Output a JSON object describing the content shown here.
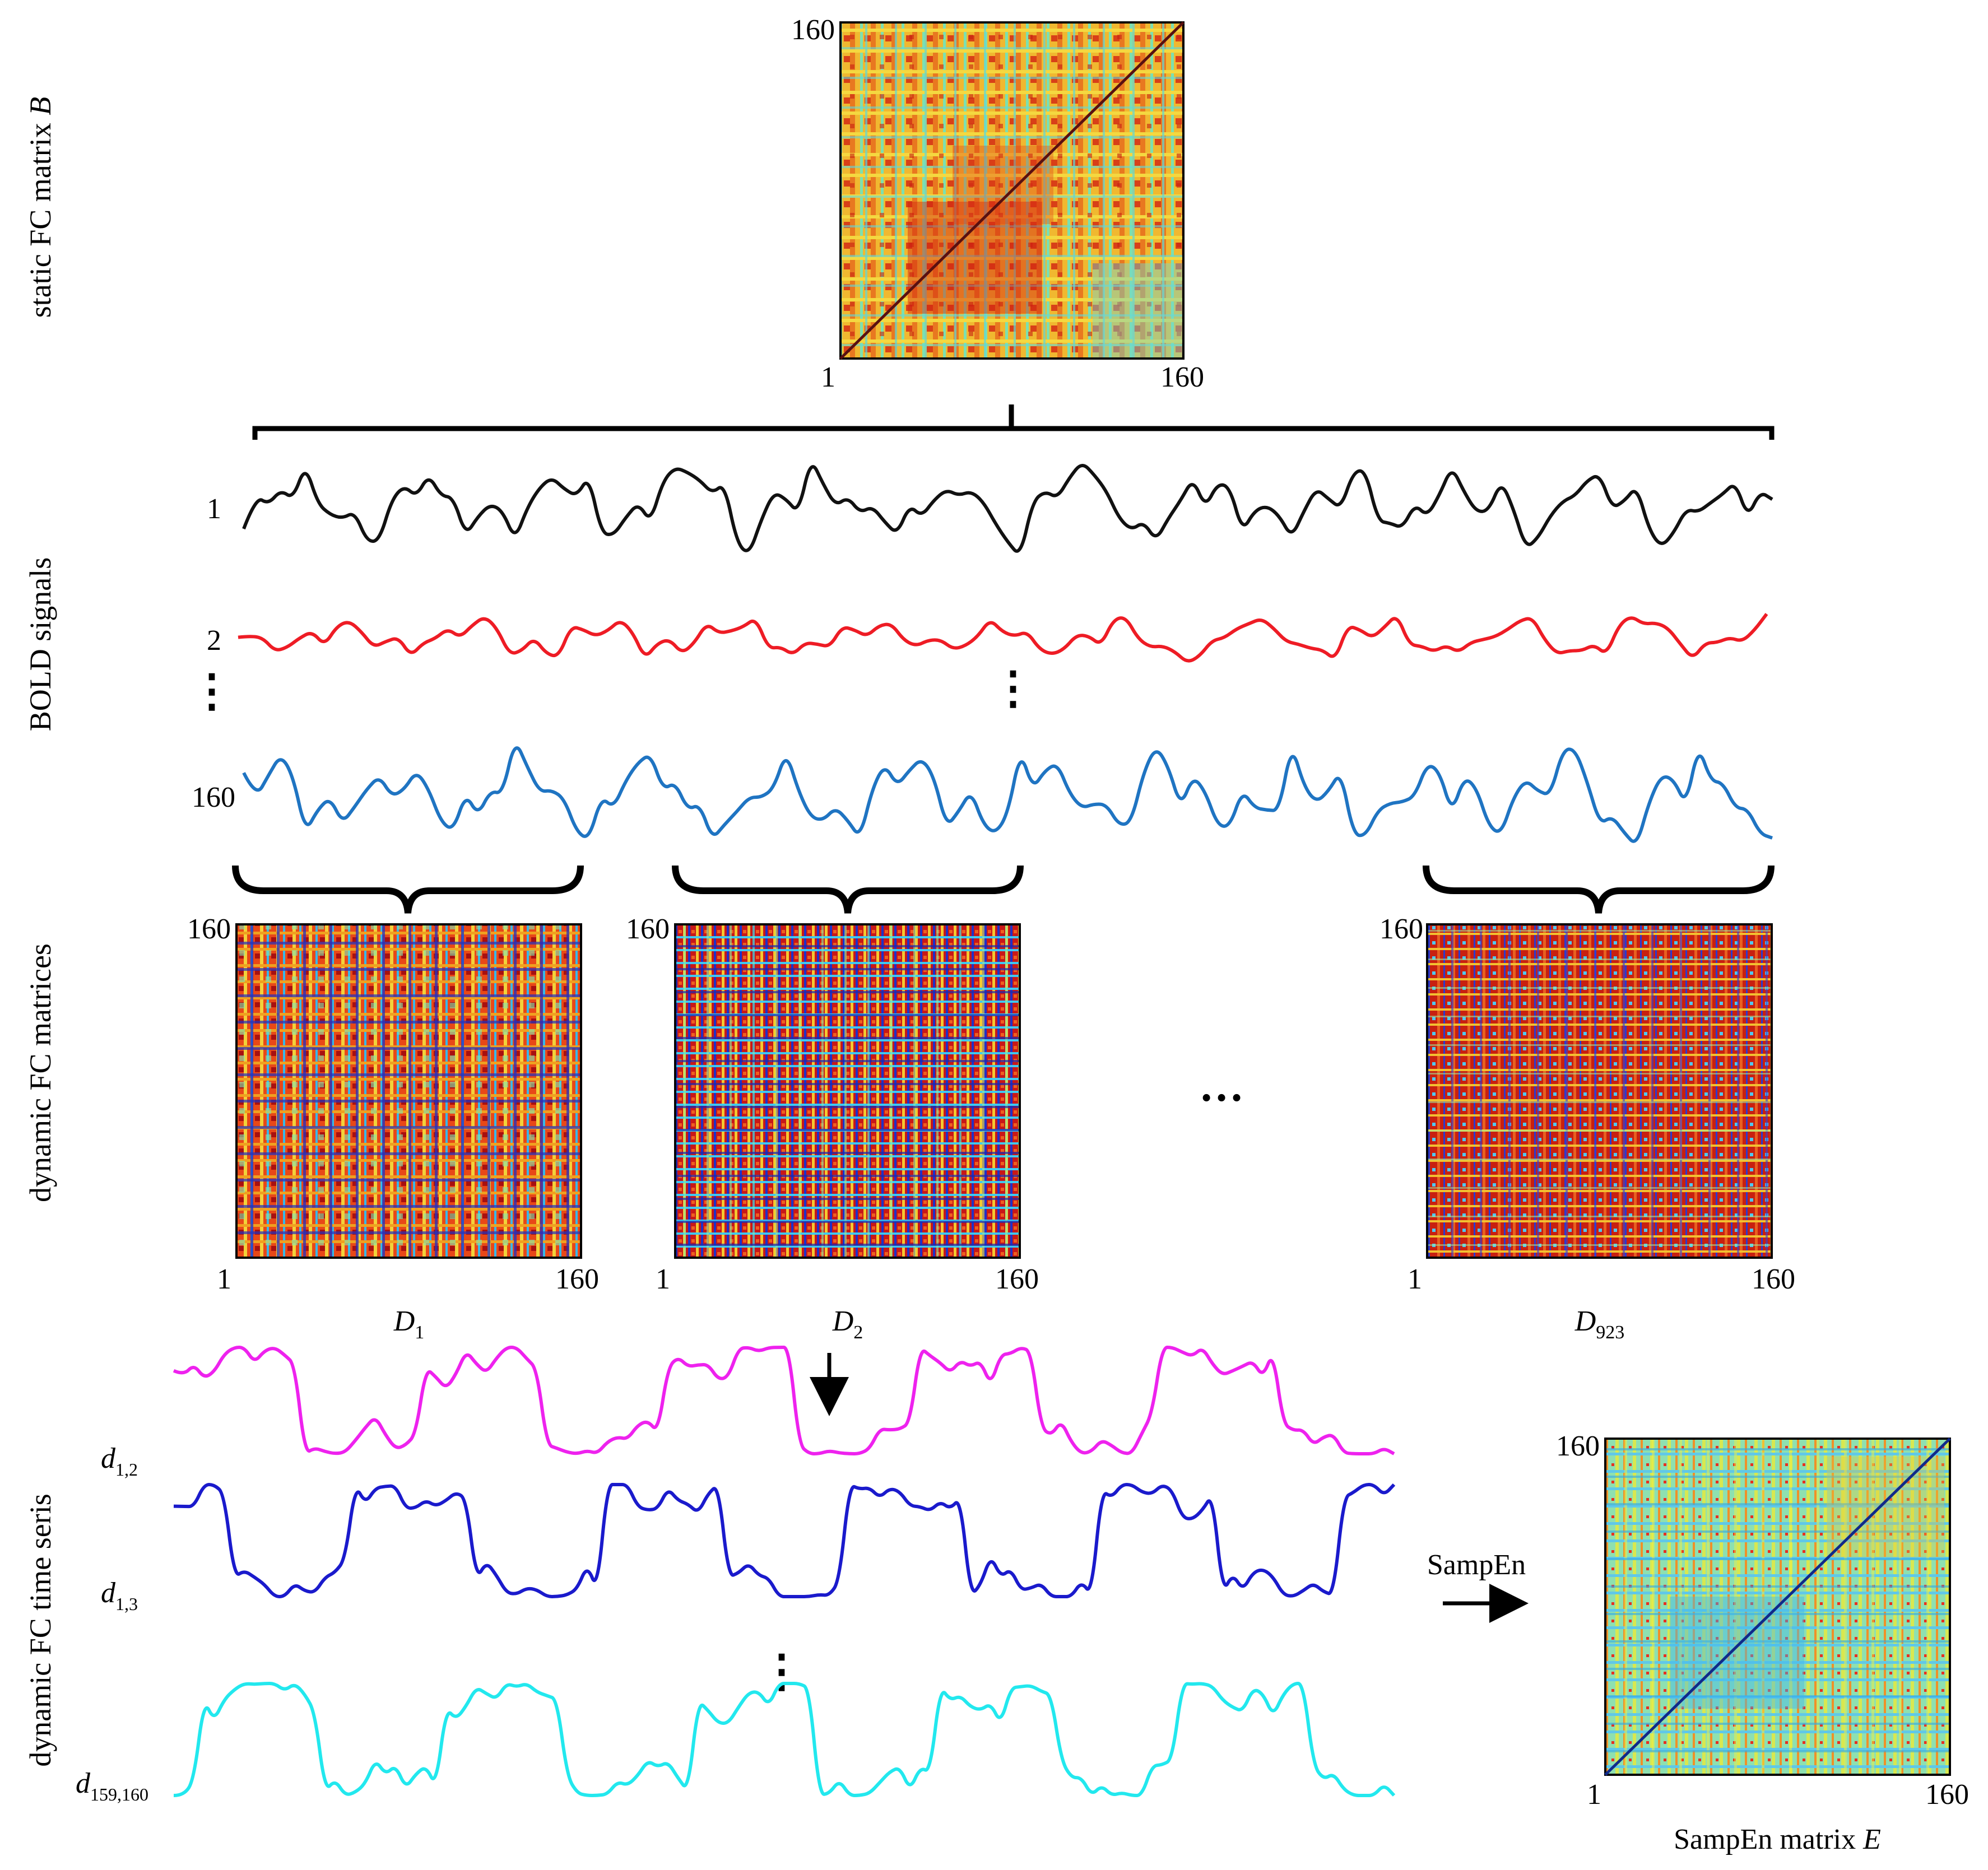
{
  "sections": {
    "static_fc": "static FC matrix B",
    "bold": "BOLD signals",
    "dynamic_fc": "dynamic FC matrices",
    "dynamic_ts": "dynamic FC time seris"
  },
  "static_matrix": {
    "tick_top": "160",
    "tick_left": "1",
    "tick_right": "160"
  },
  "bold_signals": {
    "labels": [
      "1",
      "2",
      "160"
    ],
    "colors": [
      "#111111",
      "#ee1c25",
      "#1f74c2"
    ],
    "ellipsis": "⋮"
  },
  "dynamic_matrices": [
    {
      "tick_top": "160",
      "tick_left": "1",
      "tick_right": "160",
      "name": "D",
      "sub": "1"
    },
    {
      "tick_top": "160",
      "tick_left": "1",
      "tick_right": "160",
      "name": "D",
      "sub": "2"
    },
    {
      "tick_top": "160",
      "tick_left": "1",
      "tick_right": "160",
      "name": "D",
      "sub": "923"
    }
  ],
  "dynamic_ellipsis": "…",
  "fc_timeseries": {
    "labels": [
      {
        "name": "d",
        "sub": "1,2"
      },
      {
        "name": "d",
        "sub": "1,3"
      },
      {
        "name": "d",
        "sub": "159,160"
      }
    ],
    "colors": [
      "#ee22ee",
      "#1a1acc",
      "#22e8ee"
    ],
    "ellipsis": "⋮"
  },
  "sampen": {
    "arrow_label": "SampEn",
    "tick_top": "160",
    "tick_left": "1",
    "tick_right": "160",
    "caption_prefix": "SampEn matrix ",
    "caption_var": "E"
  },
  "static_caption_var": "B"
}
